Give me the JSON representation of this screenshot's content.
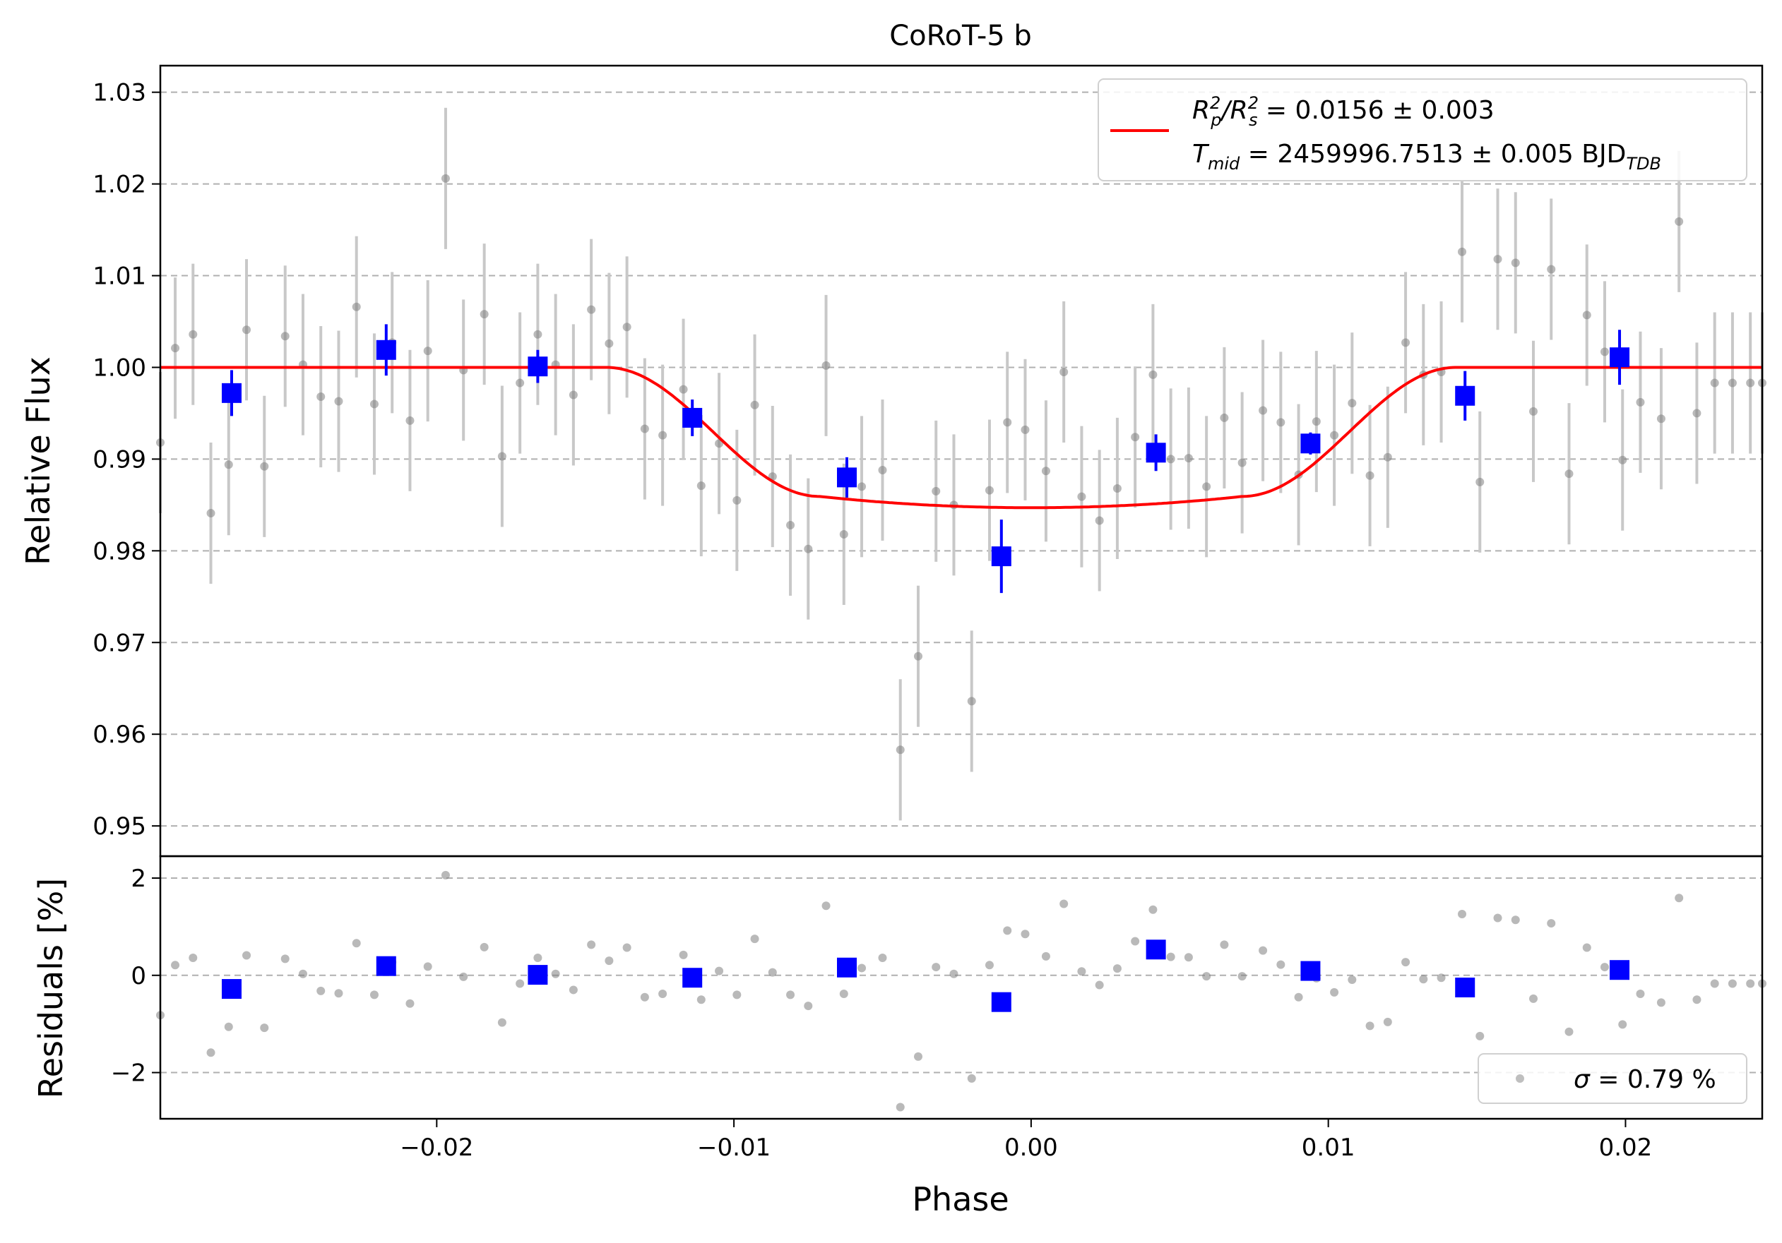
{
  "chart_data": [
    {
      "panel": "light curve",
      "type": "scatter",
      "title": "CoRoT-5 b",
      "xlabel": "Phase",
      "ylabel": "Relative Flux",
      "xlim": [
        -0.0293,
        0.0246
      ],
      "ylim": [
        0.9467,
        1.0329
      ],
      "xticks": [
        -0.02,
        -0.01,
        0.0,
        0.01,
        0.02
      ],
      "xtick_labels": [
        "−0.02",
        "−0.01",
        "0.00",
        "0.01",
        "0.02"
      ],
      "yticks": [
        0.95,
        0.96,
        0.97,
        0.98,
        0.99,
        1.0,
        1.01,
        1.02,
        1.03
      ],
      "ytick_labels": [
        "0.95",
        "0.96",
        "0.97",
        "0.98",
        "0.99",
        "1.00",
        "1.01",
        "1.02",
        "1.03"
      ],
      "grid": "horizontal dashed",
      "legend_position": "top-right",
      "legend": {
        "line_1_main": "R",
        "line_1_sub1": "p",
        "line_1_sup1": "2",
        "line_1_mid": "/R",
        "line_1_sub2": "s",
        "line_1_sup2": "2",
        "line_1_value": " = 0.0156 ± 0.003",
        "line_2_main": "T",
        "line_2_sub": "mid",
        "line_2_value": " = 2459996.7513 ± 0.005 BJD",
        "line_2_unit_sub": "TDB"
      },
      "series": {
        "raw_points": {
          "color": "#808080",
          "errorbar_color": "#c8c8c8",
          "x": [
            -0.0293,
            -0.0288,
            -0.0282,
            -0.0276,
            -0.027,
            -0.0264,
            -0.0258,
            -0.0251,
            -0.0245,
            -0.0239,
            -0.0233,
            -0.0227,
            -0.0221,
            -0.0215,
            -0.0209,
            -0.0203,
            -0.0197,
            -0.0191,
            -0.0184,
            -0.0178,
            -0.0172,
            -0.0166,
            -0.016,
            -0.0154,
            -0.0148,
            -0.0142,
            -0.0136,
            -0.013,
            -0.0124,
            -0.0117,
            -0.0111,
            -0.0105,
            -0.0099,
            -0.0093,
            -0.0087,
            -0.0081,
            -0.0075,
            -0.0069,
            -0.0063,
            -0.0057,
            -0.005,
            -0.0044,
            -0.0038,
            -0.0032,
            -0.0026,
            -0.002,
            -0.0014,
            -0.0008,
            -0.0002,
            0.0005,
            0.0011,
            0.0017,
            0.0023,
            0.0029,
            0.0035,
            0.0041,
            0.0047,
            0.0053,
            0.0059,
            0.0065,
            0.0071,
            0.0078,
            0.0084,
            0.009,
            0.0096,
            0.0102,
            0.0108,
            0.0114,
            0.012,
            0.0126,
            0.0132,
            0.0138,
            0.0145,
            0.0151,
            0.0157,
            0.0163,
            0.0169,
            0.0175,
            0.0181,
            0.0187,
            0.0193,
            0.0199,
            0.0205,
            0.0212,
            0.0218,
            0.0224,
            0.023,
            0.0236,
            0.0242,
            0.0246
          ],
          "y": [
            0.9918,
            1.0021,
            1.0036,
            0.9841,
            0.9894,
            1.0041,
            0.9892,
            1.0034,
            1.0003,
            0.9968,
            0.9963,
            1.0066,
            0.996,
            1.0027,
            0.9942,
            1.0018,
            1.0206,
            0.9997,
            1.0058,
            0.9903,
            0.9983,
            1.0036,
            1.0003,
            0.997,
            1.0063,
            1.0026,
            1.0044,
            0.9933,
            0.9926,
            0.9976,
            0.9871,
            0.9917,
            0.9855,
            0.9959,
            0.9881,
            0.9828,
            0.9802,
            1.0002,
            0.9818,
            0.987,
            0.9888,
            0.9583,
            0.9685,
            0.9865,
            0.985,
            0.9636,
            0.9866,
            0.994,
            0.9932,
            0.9887,
            0.9995,
            0.9859,
            0.9833,
            0.9868,
            0.9924,
            0.9992,
            0.99,
            0.9901,
            0.987,
            0.9945,
            0.9896,
            0.9953,
            0.994,
            0.9883,
            0.9941,
            0.9926,
            0.9961,
            0.9882,
            0.9902,
            1.0027,
            0.9992,
            0.9995,
            1.0126,
            0.9875,
            1.0118,
            1.0114,
            0.9952,
            1.0107,
            0.9884,
            1.0057,
            1.0017,
            0.9899,
            0.9962,
            0.9944,
            1.0159,
            0.995,
            0.9983,
            0.9983,
            0.9983,
            0.9983
          ],
          "yerr": 0.0077
        },
        "binned_points": {
          "color": "#0000ff",
          "x": [
            -0.0269,
            -0.0217,
            -0.0166,
            -0.0114,
            -0.0062,
            -0.001,
            0.0042,
            0.0094,
            0.0146,
            0.0198
          ],
          "y": [
            0.9972,
            1.0019,
            1.0001,
            0.9945,
            0.988,
            0.9794,
            0.9907,
            0.9917,
            0.9969,
            1.0011
          ],
          "yerr": [
            0.0025,
            0.0028,
            0.0018,
            0.002,
            0.0022,
            0.004,
            0.002,
            0.0012,
            0.0027,
            0.003
          ]
        },
        "model": {
          "color": "#ff0000",
          "depth": 0.0153,
          "t14_half": 0.0143,
          "ingress": 0.0072
        }
      }
    },
    {
      "panel": "residuals",
      "type": "scatter",
      "ylabel": "Residuals [%]",
      "xlabel": "Phase",
      "xlim": [
        -0.0293,
        0.0246
      ],
      "ylim": [
        -2.95,
        2.45
      ],
      "yticks": [
        -2,
        0,
        2
      ],
      "ytick_labels": [
        "−2",
        "0",
        "2"
      ],
      "grid": "horizontal dashed",
      "legend_position": "bottom-right",
      "legend": {
        "sigma_symbol": "σ",
        "sigma_value": " = 0.79 %"
      },
      "series": {
        "raw_residuals": {
          "y": [
            -0.82,
            0.21,
            0.36,
            -1.59,
            -1.06,
            0.41,
            -1.08,
            0.34,
            0.03,
            -0.32,
            -0.37,
            0.66,
            -0.4,
            0.27,
            -0.58,
            0.18,
            2.06,
            -0.03,
            0.58,
            -0.97,
            -0.17,
            0.36,
            0.03,
            -0.3,
            0.63,
            0.3,
            0.57,
            -0.45,
            -0.38,
            0.42,
            -0.5,
            0.09,
            -0.4,
            0.75,
            0.06,
            -0.4,
            -0.63,
            1.43,
            -0.38,
            0.15,
            0.36,
            -2.71,
            -1.67,
            0.17,
            0.03,
            -2.12,
            0.21,
            0.92,
            0.85,
            0.39,
            1.47,
            0.08,
            -0.2,
            0.14,
            0.7,
            1.35,
            0.38,
            0.37,
            -0.02,
            0.63,
            -0.02,
            0.51,
            0.22,
            -0.45,
            -0.06,
            -0.35,
            -0.09,
            -1.04,
            -0.96,
            0.27,
            -0.08,
            -0.05,
            1.26,
            -1.25,
            1.18,
            1.14,
            -0.48,
            1.07,
            -1.16,
            0.57,
            0.17,
            -1.01,
            -0.38,
            -0.56,
            1.59,
            -0.5,
            -0.17,
            -0.17,
            -0.17,
            -0.17
          ]
        },
        "binned_residuals": {
          "y": [
            -0.28,
            0.19,
            0.01,
            -0.05,
            0.16,
            -0.55,
            0.53,
            0.09,
            -0.25,
            0.11
          ]
        }
      }
    }
  ]
}
